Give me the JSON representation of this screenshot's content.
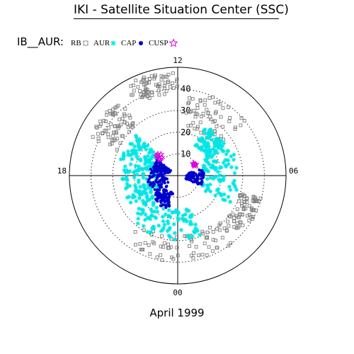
{
  "title": "IKI - Satellite Situation Center (SSC)",
  "footer": "April 1999",
  "series_prefix": "IB__AUR:",
  "chart_data": {
    "type": "scatter",
    "coordinate_system": "polar (magnetic latitude vs magnetic local time)",
    "radial_ticks": [
      "10",
      "20",
      "30",
      "40"
    ],
    "angular_ticks": [
      "00",
      "06",
      "12",
      "18"
    ],
    "angular_tick_positions": [
      0,
      6,
      12,
      18
    ],
    "radial_range": [
      0,
      50
    ],
    "grid": "dotted rings at 10, 20, 30, 40; solid boundary ring; solid cross axes",
    "legend_placement": "top-left",
    "series": [
      {
        "name": "RB",
        "marker": "hollow square",
        "color": "#808080",
        "regions": [
          {
            "mlt": [
              12.0,
              14.0
            ],
            "colat": [
              38,
              48
            ]
          },
          {
            "mlt": [
              14.5,
              16.5
            ],
            "colat": [
              30,
              44
            ]
          },
          {
            "mlt": [
              8.5,
              11.5
            ],
            "colat": [
              22,
              40
            ]
          },
          {
            "mlt": [
              21.5,
              3.0
            ],
            "colat": [
              28,
              40
            ]
          },
          {
            "mlt": [
              3.0,
              5.0
            ],
            "colat": [
              30,
              40
            ]
          }
        ]
      },
      {
        "name": "AUR",
        "marker": "star",
        "color": "#00e5e5",
        "regions": [
          {
            "mlt": [
              15.0,
              17.5
            ],
            "colat": [
              12,
              28
            ]
          },
          {
            "mlt": [
              17.5,
              21.0
            ],
            "colat": [
              10,
              26
            ]
          },
          {
            "mlt": [
              21.0,
              1.5
            ],
            "colat": [
              16,
              30
            ]
          },
          {
            "mlt": [
              4.0,
              8.0
            ],
            "colat": [
              12,
              28
            ]
          },
          {
            "mlt": [
              8.0,
              10.0
            ],
            "colat": [
              16,
              26
            ]
          }
        ]
      },
      {
        "name": "CAP",
        "marker": "filled circle",
        "color": "#0000cc",
        "regions": [
          {
            "mlt": [
              15.5,
              17.0
            ],
            "colat": [
              4,
              12
            ]
          },
          {
            "mlt": [
              17.0,
              21.0
            ],
            "colat": [
              5,
              14
            ]
          },
          {
            "mlt": [
              21.0,
              23.0
            ],
            "colat": [
              8,
              16
            ]
          },
          {
            "mlt": [
              4.5,
              7.0
            ],
            "colat": [
              4,
              12
            ]
          }
        ]
      },
      {
        "name": "CUSP",
        "marker": "hollow star",
        "color": "#e000e0",
        "regions": [
          {
            "mlt": [
              14.5,
              15.3
            ],
            "colat": [
              11,
              14
            ]
          },
          {
            "mlt": [
              8.0,
              8.5
            ],
            "colat": [
              9,
              10
            ]
          }
        ]
      }
    ]
  }
}
